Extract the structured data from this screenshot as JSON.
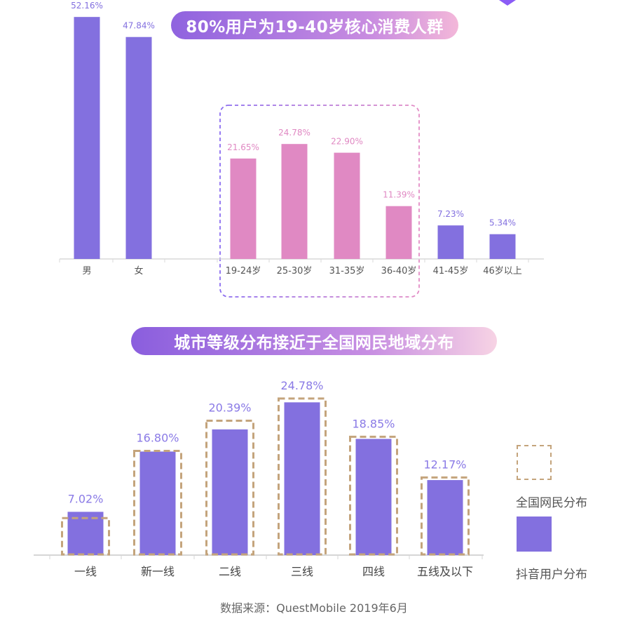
{
  "banners": {
    "top": "80%用户为19-40岁核心消费人群",
    "bottom": "城市等级分布接近于全国网民地域分布"
  },
  "colors": {
    "purple": "#8370df",
    "pink": "#e089c3",
    "outline": "#c4a47c",
    "highlight_border_start": "#8a6cf0",
    "highlight_border_end": "#e38cc5"
  },
  "legend": {
    "national": "全国网民分布",
    "douyin": "抖音用户分布"
  },
  "source": "数据来源：QuestMobile 2019年6月",
  "chart_data": [
    {
      "type": "bar",
      "title": "",
      "categories": [
        "男",
        "女",
        "19-24岁",
        "25-30岁",
        "31-35岁",
        "36-40岁",
        "41-45岁",
        "46岁以上"
      ],
      "values": [
        52.16,
        47.84,
        21.65,
        24.78,
        22.9,
        11.39,
        7.23,
        5.34
      ],
      "labels": [
        "52.16%",
        "47.84%",
        "21.65%",
        "24.78%",
        "22.90%",
        "11.39%",
        "7.23%",
        "5.34%"
      ],
      "highlighted_categories": [
        "19-24岁",
        "25-30岁",
        "31-35岁",
        "36-40岁"
      ],
      "ylim": [
        0,
        54
      ],
      "grid": false,
      "xlabel": "",
      "ylabel": ""
    },
    {
      "type": "bar",
      "title": "",
      "categories": [
        "一线",
        "新一线",
        "二线",
        "三线",
        "四线",
        "五线及以下"
      ],
      "series": [
        {
          "name": "抖音用户分布",
          "values": [
            7.02,
            16.8,
            20.39,
            24.78,
            18.85,
            12.17
          ]
        },
        {
          "name": "全国网民分布",
          "values": [
            6.0,
            16.9,
            21.8,
            25.4,
            19.2,
            12.6
          ]
        }
      ],
      "labels": [
        "7.02%",
        "16.80%",
        "20.39%",
        "24.78%",
        "18.85%",
        "12.17%"
      ],
      "ylim": [
        0,
        27
      ],
      "legend": "right",
      "grid": false,
      "xlabel": "",
      "ylabel": ""
    }
  ]
}
